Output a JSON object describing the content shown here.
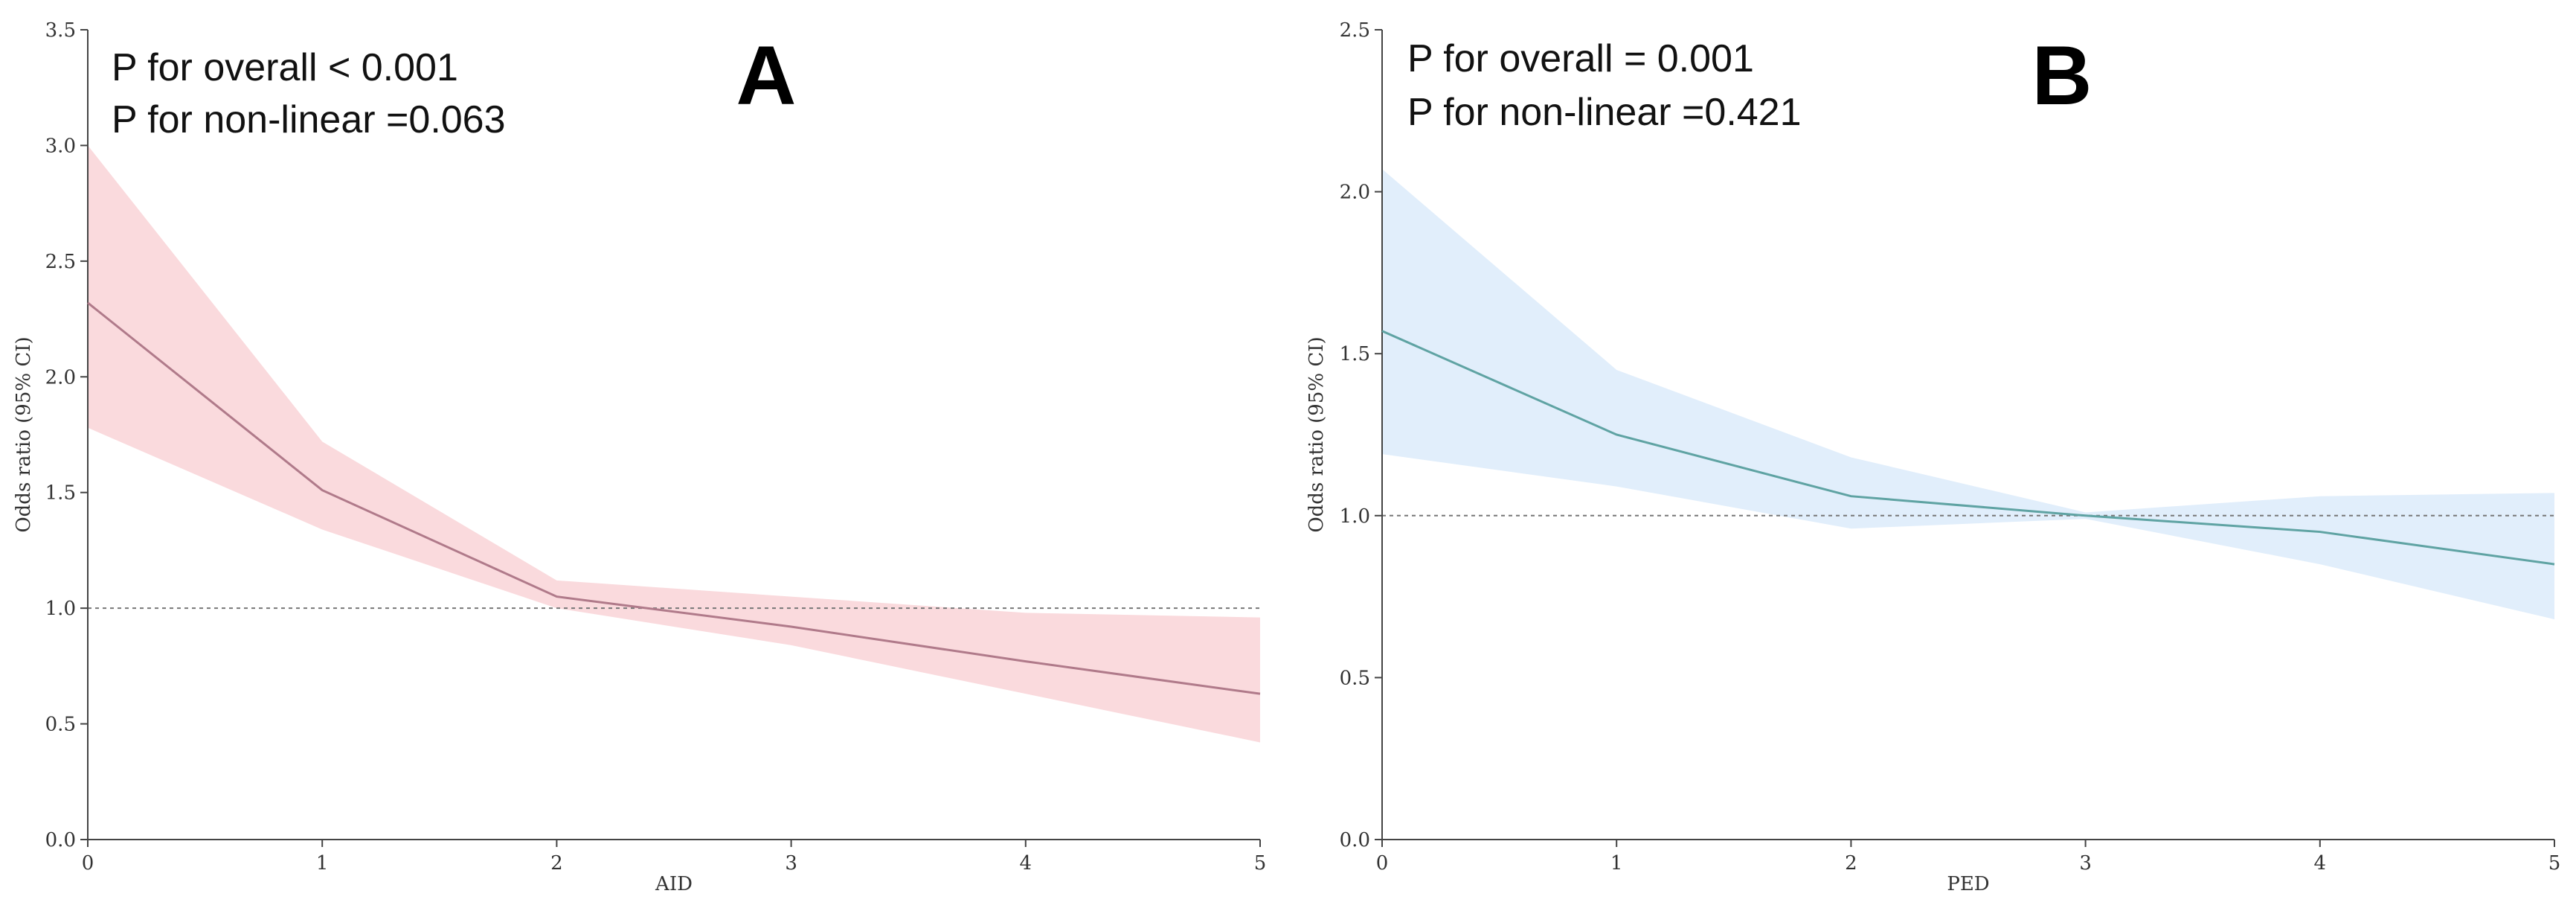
{
  "chart_data": [
    {
      "type": "line",
      "panel_label": "A",
      "xlabel": "AID",
      "ylabel": "Odds ratio (95% CI)",
      "xlim": [
        0,
        5
      ],
      "ylim": [
        0,
        3.5
      ],
      "x_ticks": [
        "0",
        "1",
        "2",
        "3",
        "4",
        "5"
      ],
      "y_ticks": [
        "0.0",
        "0.5",
        "1.0",
        "1.5",
        "2.0",
        "2.5",
        "3.0",
        "3.5"
      ],
      "reference_line": 1.0,
      "annotations": [
        "P for overall < 0.001",
        "P for non-linear =0.063"
      ],
      "series": [
        {
          "name": "Odds ratio",
          "x": [
            0,
            1,
            2,
            3,
            4,
            5
          ],
          "y": [
            2.32,
            1.51,
            1.05,
            0.92,
            0.77,
            0.63
          ],
          "lower": [
            1.78,
            1.34,
            1.0,
            0.84,
            0.63,
            0.42
          ],
          "upper": [
            3.0,
            1.72,
            1.12,
            1.05,
            0.98,
            0.96
          ]
        }
      ],
      "colors": {
        "line": "#b07a8a",
        "band": "#fadadd"
      }
    },
    {
      "type": "line",
      "panel_label": "B",
      "xlabel": "PED",
      "ylabel": "Odds ratio (95% CI)",
      "xlim": [
        0,
        5
      ],
      "ylim": [
        0,
        2.5
      ],
      "x_ticks": [
        "0",
        "1",
        "2",
        "3",
        "4",
        "5"
      ],
      "y_ticks": [
        "0.0",
        "0.5",
        "1.0",
        "1.5",
        "2.0",
        "2.5"
      ],
      "reference_line": 1.0,
      "annotations": [
        "P for overall = 0.001",
        "P for non-linear =0.421"
      ],
      "series": [
        {
          "name": "Odds ratio",
          "x": [
            0,
            1,
            2,
            3,
            4,
            5
          ],
          "y": [
            1.57,
            1.25,
            1.06,
            1.0,
            0.95,
            0.85
          ],
          "lower": [
            1.19,
            1.09,
            0.96,
            0.99,
            0.85,
            0.68
          ],
          "upper": [
            2.07,
            1.45,
            1.18,
            1.01,
            1.06,
            1.07
          ]
        }
      ],
      "colors": {
        "line": "#5fa3a3",
        "band": "#e1eefb"
      }
    }
  ]
}
